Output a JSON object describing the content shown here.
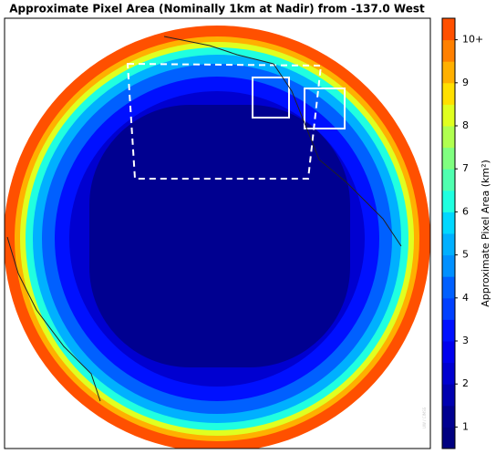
{
  "title": "Approximate Pixel Area (Nominally 1km at Nadir) from -137.0 West",
  "watermark": "UW / CIMSS",
  "colorbar": {
    "label": "Approximate Pixel Area (km²)",
    "lim": [
      0.5,
      10.5
    ],
    "ticks": [
      1,
      2,
      3,
      4,
      5,
      6,
      7,
      8,
      9,
      {
        "value": 10,
        "label": "10+"
      }
    ],
    "colors": [
      "#000080",
      "#000090",
      "#0000b0",
      "#0000d0",
      "#0000ee",
      "#0010ff",
      "#0040ff",
      "#0060ff",
      "#0090ff",
      "#00b0ff",
      "#00d8ff",
      "#20ffe0",
      "#50ffb0",
      "#80ff80",
      "#b0ff50",
      "#e0ff20",
      "#ffe000",
      "#ffb000",
      "#ff8000",
      "#ff5000"
    ]
  }
}
